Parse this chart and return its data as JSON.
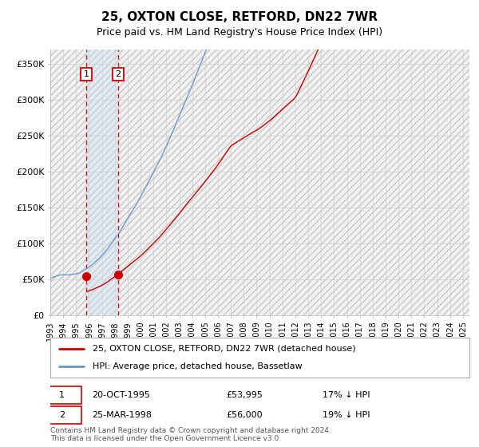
{
  "title": "25, OXTON CLOSE, RETFORD, DN22 7WR",
  "subtitle": "Price paid vs. HM Land Registry's House Price Index (HPI)",
  "ylabel_ticks": [
    "£0",
    "£50K",
    "£100K",
    "£150K",
    "£200K",
    "£250K",
    "£300K",
    "£350K"
  ],
  "ylim": [
    0,
    370000
  ],
  "yticks": [
    0,
    50000,
    100000,
    150000,
    200000,
    250000,
    300000,
    350000
  ],
  "legend_line1": "25, OXTON CLOSE, RETFORD, DN22 7WR (detached house)",
  "legend_line2": "HPI: Average price, detached house, Bassetlaw",
  "line1_color": "#cc0000",
  "line2_color": "#6699cc",
  "sale1_date": "20-OCT-1995",
  "sale1_price": "£53,995",
  "sale1_hpi": "17% ↓ HPI",
  "sale2_date": "25-MAR-1998",
  "sale2_price": "£56,000",
  "sale2_hpi": "19% ↓ HPI",
  "footnote": "Contains HM Land Registry data © Crown copyright and database right 2024.\nThis data is licensed under the Open Government Licence v3.0.",
  "grid_color": "#cccccc",
  "sale1_x": 1995.8,
  "sale2_x": 1998.25,
  "sale1_price_val": 53995,
  "sale2_price_val": 56000,
  "hatch_color": "#e0e0e0",
  "span_color": "#ddeeff",
  "title_fontsize": 11,
  "subtitle_fontsize": 9,
  "axis_fontsize": 8
}
